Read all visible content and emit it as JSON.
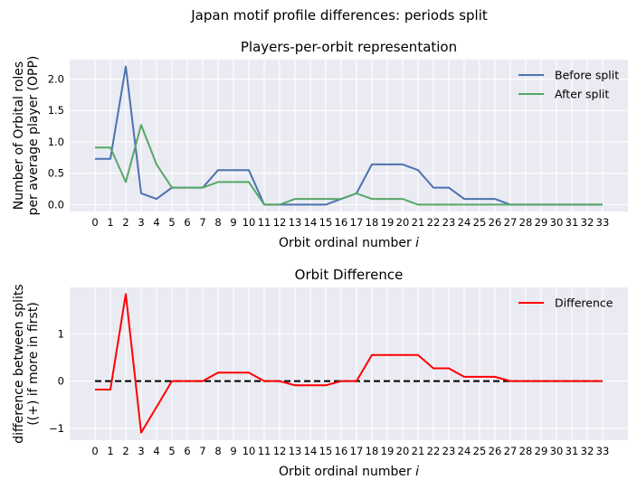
{
  "suptitle": "Japan motif profile differences: periods split",
  "chart_data": [
    {
      "type": "line",
      "title": "Players-per-orbit representation",
      "xlabel": "Orbit ordinal number",
      "xlabel_italic": "i",
      "ylabel_lines": [
        "Number of Orbital roles",
        "per average player (OPP)"
      ],
      "x": [
        0,
        1,
        2,
        3,
        4,
        5,
        6,
        7,
        8,
        9,
        10,
        11,
        12,
        13,
        14,
        15,
        16,
        17,
        18,
        19,
        20,
        21,
        22,
        23,
        24,
        25,
        26,
        27,
        28,
        29,
        30,
        31,
        32,
        33
      ],
      "xlim": [
        -1.65,
        34.65
      ],
      "ylim": [
        -0.11,
        2.31
      ],
      "yticks": [
        0.0,
        0.5,
        1.0,
        1.5,
        2.0
      ],
      "ytick_labels": [
        "0.0",
        "0.5",
        "1.0",
        "1.5",
        "2.0"
      ],
      "grid": true,
      "legend_position": "top-right",
      "series": [
        {
          "name": "Before split",
          "color": "#4c72b0",
          "values": [
            0.73,
            0.73,
            2.2,
            0.18,
            0.09,
            0.27,
            0.27,
            0.27,
            0.55,
            0.55,
            0.55,
            0.0,
            0.0,
            0.0,
            0.0,
            0.0,
            0.09,
            0.18,
            0.64,
            0.64,
            0.64,
            0.55,
            0.27,
            0.27,
            0.09,
            0.09,
            0.09,
            0.0,
            0.0,
            0.0,
            0.0,
            0.0,
            0.0,
            0.0
          ]
        },
        {
          "name": "After split",
          "color": "#55a868",
          "values": [
            0.91,
            0.91,
            0.36,
            1.27,
            0.64,
            0.27,
            0.27,
            0.27,
            0.36,
            0.36,
            0.36,
            0.0,
            0.0,
            0.09,
            0.09,
            0.09,
            0.09,
            0.18,
            0.09,
            0.09,
            0.09,
            0.0,
            0.0,
            0.0,
            0.0,
            0.0,
            0.0,
            0.0,
            0.0,
            0.0,
            0.0,
            0.0,
            0.0,
            0.0
          ]
        }
      ]
    },
    {
      "type": "line",
      "title": "Orbit Difference",
      "xlabel": "Orbit ordinal number",
      "xlabel_italic": "i",
      "ylabel_lines": [
        "difference between splits",
        "((+) if more in first)"
      ],
      "x": [
        0,
        1,
        2,
        3,
        4,
        5,
        6,
        7,
        8,
        9,
        10,
        11,
        12,
        13,
        14,
        15,
        16,
        17,
        18,
        19,
        20,
        21,
        22,
        23,
        24,
        25,
        26,
        27,
        28,
        29,
        30,
        31,
        32,
        33
      ],
      "xlim": [
        -1.65,
        34.65
      ],
      "ylim": [
        -1.25,
        1.98
      ],
      "yticks": [
        -1,
        0,
        1
      ],
      "ytick_labels": [
        "−1",
        "0",
        "1"
      ],
      "grid": true,
      "legend_position": "top-right",
      "zero_line": {
        "y": 0,
        "style": "dashed",
        "color": "#000000"
      },
      "series": [
        {
          "name": "Difference",
          "color": "#ff0000",
          "values": [
            -0.18,
            -0.18,
            1.84,
            -1.09,
            -0.55,
            0.0,
            0.0,
            0.0,
            0.18,
            0.18,
            0.18,
            0.0,
            0.0,
            -0.09,
            -0.09,
            -0.09,
            0.0,
            0.0,
            0.55,
            0.55,
            0.55,
            0.55,
            0.27,
            0.27,
            0.09,
            0.09,
            0.09,
            0.0,
            0.0,
            0.0,
            0.0,
            0.0,
            0.0,
            0.0
          ]
        }
      ]
    }
  ]
}
